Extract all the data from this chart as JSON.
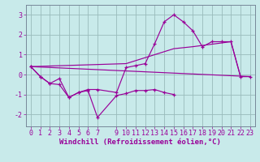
{
  "xlabel": "Windchill (Refroidissement éolien,°C)",
  "bg_color": "#c8eaea",
  "line_color": "#990099",
  "grid_color": "#99bbbb",
  "xlim": [
    -0.5,
    23.5
  ],
  "ylim": [
    -2.6,
    3.5
  ],
  "xticks": [
    0,
    1,
    2,
    3,
    4,
    5,
    6,
    7,
    9,
    10,
    11,
    12,
    13,
    14,
    15,
    16,
    17,
    18,
    19,
    20,
    21,
    22,
    23
  ],
  "yticks": [
    -2,
    -1,
    0,
    1,
    2,
    3
  ],
  "line1_x": [
    0,
    1,
    2,
    3,
    4,
    5,
    6,
    7,
    9,
    10,
    11,
    12,
    13,
    14,
    15,
    16,
    17,
    18,
    19,
    20,
    21,
    22,
    23
  ],
  "line1_y": [
    0.4,
    -0.1,
    -0.45,
    -0.2,
    -1.15,
    -0.9,
    -0.75,
    -0.75,
    -0.9,
    0.35,
    0.45,
    0.55,
    1.55,
    2.65,
    3.0,
    2.65,
    2.2,
    1.4,
    1.65,
    1.65,
    1.65,
    -0.1,
    -0.1
  ],
  "line2_x": [
    0,
    1,
    2,
    3,
    4,
    5,
    6,
    7,
    9,
    10,
    11,
    12,
    13,
    14,
    15
  ],
  "line2_y": [
    0.4,
    -0.1,
    -0.45,
    -0.5,
    -1.15,
    -0.9,
    -0.8,
    -2.15,
    -1.05,
    -0.95,
    -0.8,
    -0.8,
    -0.75,
    -0.9,
    -1.0
  ],
  "line3_x": [
    0,
    23
  ],
  "line3_y": [
    0.4,
    -0.1
  ],
  "line4_x": [
    0,
    10,
    15,
    17,
    21,
    22,
    23
  ],
  "line4_y": [
    0.4,
    0.55,
    1.3,
    1.4,
    1.65,
    -0.1,
    -0.1
  ],
  "xlabel_fontsize": 6.5,
  "tick_fontsize": 6,
  "lw": 0.85,
  "ms": 3.5
}
